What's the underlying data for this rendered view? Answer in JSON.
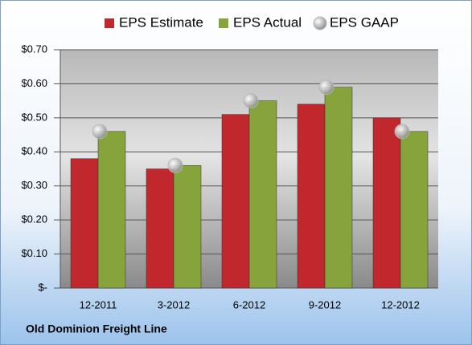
{
  "chart_data": {
    "type": "bar",
    "categories": [
      "12-2011",
      "3-2012",
      "6-2012",
      "9-2012",
      "12-2012"
    ],
    "series": [
      {
        "name": "EPS Estimate",
        "color": "#c0282d",
        "type": "bar",
        "values": [
          0.38,
          0.35,
          0.51,
          0.54,
          0.5
        ]
      },
      {
        "name": "EPS Actual",
        "color": "#86a33c",
        "type": "bar",
        "values": [
          0.46,
          0.36,
          0.55,
          0.59,
          0.46
        ]
      },
      {
        "name": "EPS GAAP",
        "color": "#b8b8b8",
        "type": "scatter",
        "values": [
          0.46,
          0.36,
          0.55,
          0.59,
          0.46
        ]
      }
    ],
    "ylim": [
      0,
      0.7
    ],
    "yticks": [
      {
        "value": 0,
        "label": "$-"
      },
      {
        "value": 0.1,
        "label": "$0.10"
      },
      {
        "value": 0.2,
        "label": "$0.20"
      },
      {
        "value": 0.3,
        "label": "$0.30"
      },
      {
        "value": 0.4,
        "label": "$0.40"
      },
      {
        "value": 0.5,
        "label": "$0.50"
      },
      {
        "value": 0.6,
        "label": "$0.60"
      },
      {
        "value": 0.7,
        "label": "$0.70"
      }
    ],
    "grid": true,
    "legend": "top",
    "footer": "Old Dominion Freight Line"
  }
}
